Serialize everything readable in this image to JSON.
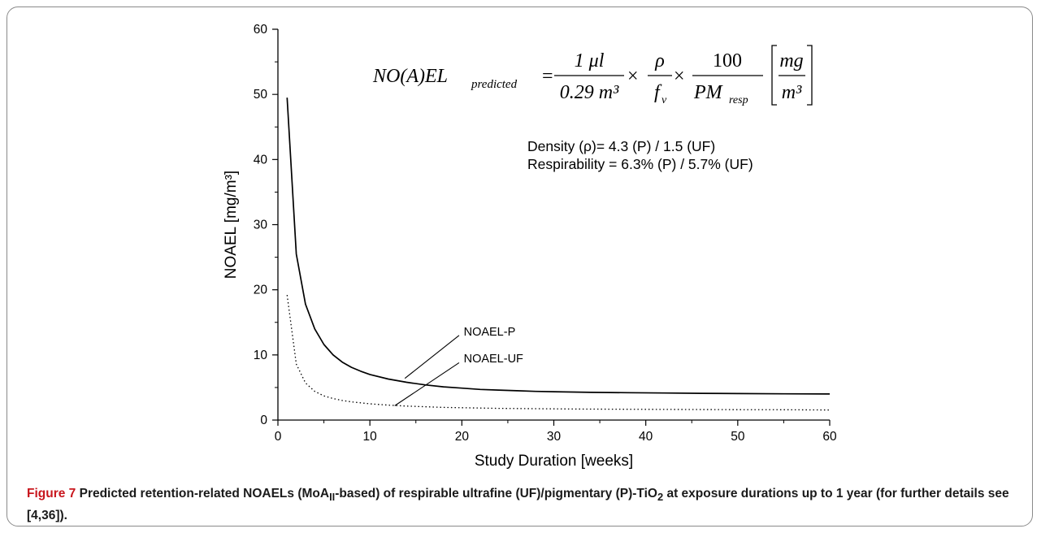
{
  "chart_data": {
    "type": "line",
    "xlabel": "Study Duration [weeks]",
    "ylabel": "NOAEL [mg/m³]",
    "xlim": [
      0,
      60
    ],
    "ylim": [
      0,
      60
    ],
    "x_ticks": [
      "0",
      "10",
      "20",
      "30",
      "40",
      "50",
      "60"
    ],
    "y_ticks": [
      "0",
      "10",
      "20",
      "30",
      "40",
      "50",
      "60"
    ],
    "grid": false,
    "series": [
      {
        "name": "NOAEL-P",
        "style": "solid",
        "x": [
          1,
          2,
          3,
          4,
          5,
          6,
          7,
          8,
          9,
          10,
          12,
          14,
          16,
          18,
          20,
          22,
          24,
          26,
          28,
          30,
          34,
          38,
          42,
          46,
          50,
          55,
          60
        ],
        "y": [
          49.5,
          25.5,
          17.8,
          14.0,
          11.6,
          10.0,
          8.9,
          8.1,
          7.5,
          7.0,
          6.3,
          5.8,
          5.4,
          5.1,
          4.9,
          4.7,
          4.6,
          4.5,
          4.4,
          4.35,
          4.25,
          4.2,
          4.15,
          4.1,
          4.07,
          4.03,
          4.0
        ]
      },
      {
        "name": "NOAEL-UF",
        "style": "dotted",
        "x": [
          1,
          2,
          3,
          4,
          5,
          6,
          7,
          8,
          9,
          10,
          12,
          14,
          16,
          18,
          20,
          24,
          28,
          32,
          36,
          40,
          45,
          50,
          55,
          60
        ],
        "y": [
          19.2,
          8.6,
          5.7,
          4.4,
          3.7,
          3.3,
          3.0,
          2.8,
          2.65,
          2.5,
          2.3,
          2.15,
          2.05,
          1.95,
          1.9,
          1.8,
          1.75,
          1.7,
          1.67,
          1.65,
          1.62,
          1.6,
          1.58,
          1.55
        ]
      }
    ],
    "annotations": {
      "label_p": "NOAEL-P",
      "label_uf": "NOAEL-UF",
      "density": "Density (ρ)= 4.3 (P) / 1.5 (UF)",
      "respirability": "Respirability = 6.3% (P) / 5.7% (UF)",
      "formula": {
        "lhs": "NO(A)EL",
        "lhs_sub": "predicted",
        "eq": "=",
        "f1_num": "1 μl",
        "f1_den": "0.29 m³",
        "times": "×",
        "f2_num": "ρ",
        "f2_den": "f",
        "f2_den_sub": "v",
        "f3_num": "100",
        "f3_den": "PM",
        "f3_den_sub": "resp",
        "unit_num": "mg",
        "unit_den": "m³"
      }
    }
  },
  "caption": {
    "label": "Figure 7",
    "text_before_sub": " Predicted retention-related NOAELs (MoA",
    "sub1": "II",
    "text_mid": "-based) of respirable ultrafine (UF)/pigmentary (P)-TiO",
    "sub2": "2",
    "text_after": " at exposure durations up to 1 year (for further details see [4,36])."
  }
}
